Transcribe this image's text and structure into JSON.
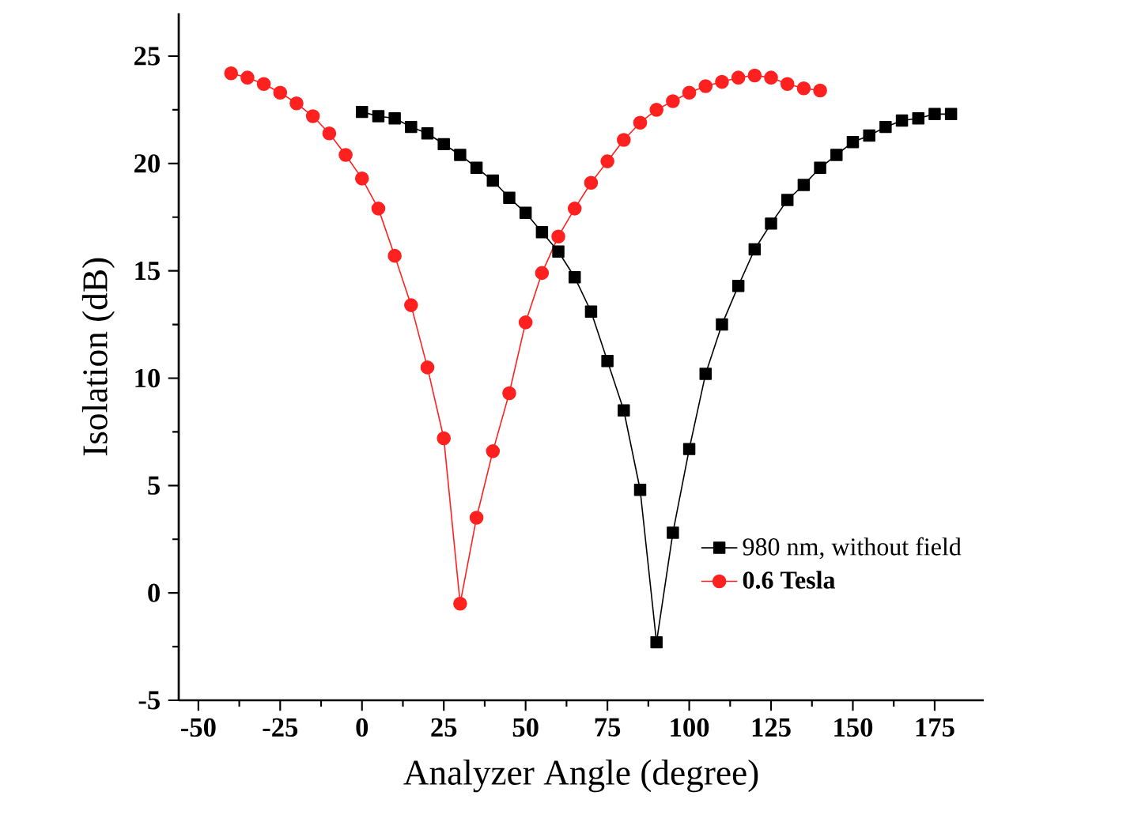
{
  "chart_data": {
    "type": "line",
    "xlabel": "Analyzer Angle (degree)",
    "ylabel": "Isolation (dB)",
    "xlim": [
      -56,
      190
    ],
    "ylim": [
      -5,
      27
    ],
    "xticks": [
      -50,
      -25,
      0,
      25,
      50,
      75,
      100,
      125,
      150,
      175
    ],
    "yticks": [
      -5,
      0,
      5,
      10,
      15,
      20,
      25
    ],
    "grid": false,
    "legend": "bottom right",
    "series": [
      {
        "name": "980 nm, without field",
        "color": "#000000",
        "marker": "square",
        "x": [
          0,
          5,
          10,
          15,
          20,
          25,
          30,
          35,
          40,
          45,
          50,
          55,
          60,
          65,
          70,
          75,
          80,
          85,
          90,
          95,
          100,
          105,
          110,
          115,
          120,
          125,
          130,
          135,
          140,
          145,
          150,
          155,
          160,
          165,
          170,
          175,
          180
        ],
        "values": [
          22.4,
          22.2,
          22.1,
          21.7,
          21.4,
          20.9,
          20.4,
          19.8,
          19.2,
          18.4,
          17.7,
          16.8,
          15.9,
          14.7,
          13.1,
          10.8,
          8.5,
          4.8,
          -2.3,
          2.8,
          6.7,
          10.2,
          12.5,
          14.3,
          16.0,
          17.2,
          18.3,
          19.0,
          19.8,
          20.4,
          21.0,
          21.3,
          21.7,
          22.0,
          22.1,
          22.3,
          22.3
        ]
      },
      {
        "name": "0.6 Tesla",
        "color": "#ff2020",
        "marker": "circle",
        "x": [
          -40,
          -35,
          -30,
          -25,
          -20,
          -15,
          -10,
          -5,
          0,
          5,
          10,
          15,
          20,
          25,
          30,
          35,
          40,
          45,
          50,
          55,
          60,
          65,
          70,
          75,
          80,
          85,
          90,
          95,
          100,
          105,
          110,
          115,
          120,
          125,
          130,
          135,
          140
        ],
        "values": [
          24.2,
          24.0,
          23.7,
          23.3,
          22.8,
          22.2,
          21.4,
          20.4,
          19.3,
          17.9,
          15.7,
          13.4,
          10.5,
          7.2,
          -0.5,
          3.5,
          6.6,
          9.3,
          12.6,
          14.9,
          16.6,
          17.9,
          19.1,
          20.1,
          21.1,
          21.9,
          22.5,
          22.9,
          23.3,
          23.6,
          23.8,
          24.0,
          24.1,
          24.0,
          23.7,
          23.5,
          23.4
        ]
      }
    ]
  }
}
